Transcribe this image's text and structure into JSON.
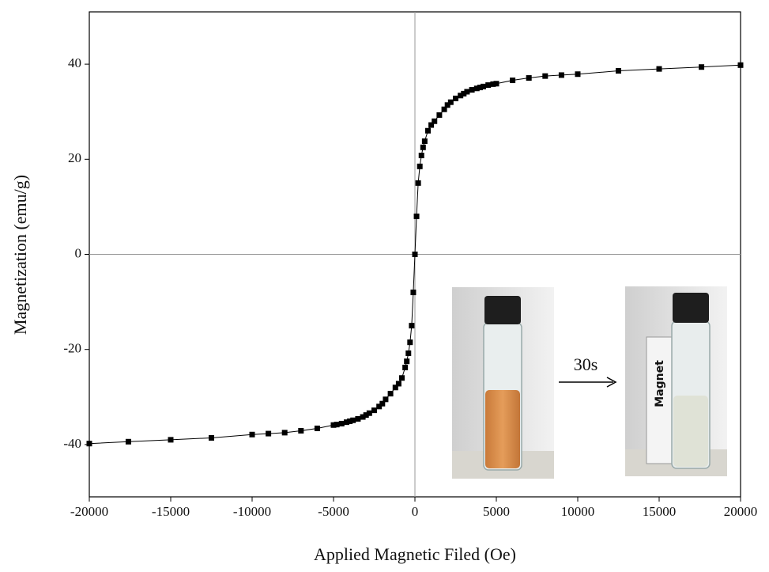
{
  "chart_data": {
    "type": "line",
    "marker": "square",
    "xlabel": "Applied Magnetic Filed (Oe)",
    "ylabel": "Magnetization (emu/g)",
    "x": [
      -20000,
      -17600,
      -15000,
      -12500,
      -10000,
      -9000,
      -8000,
      -7000,
      -6000,
      -5000,
      -4800,
      -4500,
      -4200,
      -4000,
      -3800,
      -3500,
      -3200,
      -3000,
      -2800,
      -2500,
      -2200,
      -2000,
      -1800,
      -1500,
      -1200,
      -1000,
      -800,
      -600,
      -500,
      -400,
      -300,
      -200,
      -100,
      0,
      100,
      200,
      300,
      400,
      500,
      600,
      800,
      1000,
      1200,
      1500,
      1800,
      2000,
      2200,
      2500,
      2800,
      3000,
      3200,
      3500,
      3800,
      4000,
      4200,
      4500,
      4800,
      5000,
      6000,
      7000,
      8000,
      9000,
      10000,
      12500,
      15000,
      17600,
      20000
    ],
    "series": [
      {
        "color": "#000000",
        "values": [
          -39.8,
          -39.4,
          -39,
          -38.6,
          -37.9,
          -37.7,
          -37.5,
          -37.1,
          -36.6,
          -35.9,
          -35.8,
          -35.6,
          -35.3,
          -35.1,
          -34.9,
          -34.6,
          -34.2,
          -33.8,
          -33.4,
          -32.8,
          -32,
          -31.4,
          -30.5,
          -29.3,
          -28,
          -27.2,
          -26,
          -23.8,
          -22.5,
          -20.8,
          -18.5,
          -15,
          -8,
          0,
          8,
          15,
          18.5,
          20.8,
          22.5,
          23.8,
          26,
          27.2,
          28,
          29.3,
          30.5,
          31.4,
          32,
          32.8,
          33.4,
          33.8,
          34.2,
          34.6,
          34.9,
          35.1,
          35.3,
          35.6,
          35.8,
          35.9,
          36.6,
          37.1,
          37.5,
          37.7,
          37.9,
          38.6,
          39,
          39.4,
          39.8
        ]
      }
    ],
    "xlim": [
      -20000,
      20000
    ],
    "xticks": [
      -20000,
      -15000,
      -10000,
      -5000,
      0,
      5000,
      10000,
      15000,
      20000
    ],
    "ylim": [
      -51,
      51
    ],
    "yticks": [
      -40,
      -20,
      0,
      20,
      40
    ],
    "annotations": [
      "30s",
      "Magnet"
    ]
  }
}
